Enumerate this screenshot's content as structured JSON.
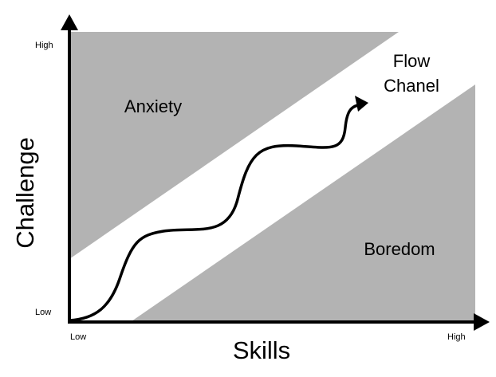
{
  "diagram": {
    "y_axis": {
      "title": "Challenge",
      "high_label": "High",
      "low_label": "Low"
    },
    "x_axis": {
      "title": "Skills",
      "low_label": "Low",
      "high_label": "High"
    },
    "regions": {
      "anxiety": {
        "label": "Anxiety"
      },
      "flow": {
        "label_line1": "Flow",
        "label_line2": "Chanel"
      },
      "boredom": {
        "label": "Boredom"
      }
    },
    "colors": {
      "region_fill": "#b3b3b3",
      "axis": "#000000",
      "text": "#000000",
      "background": "#ffffff"
    }
  }
}
